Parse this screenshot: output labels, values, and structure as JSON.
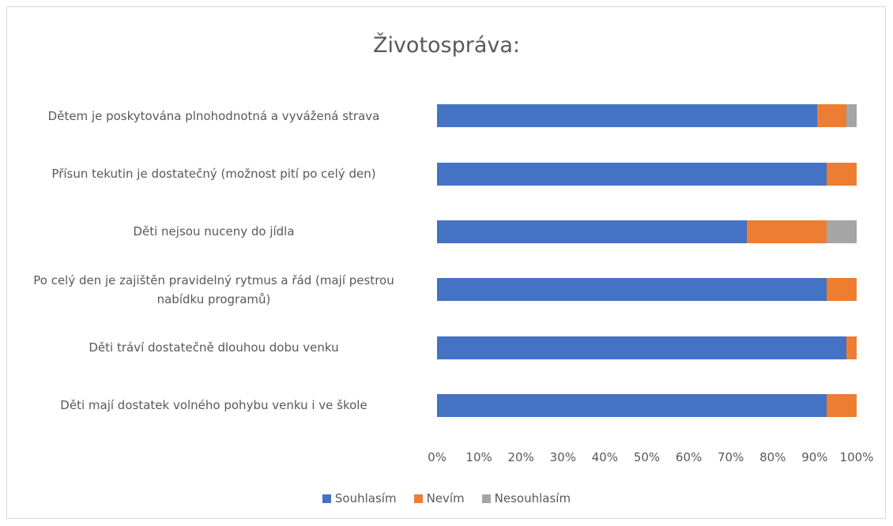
{
  "chart_data": {
    "type": "stacked_bar_horizontal",
    "title": "Životospráva:",
    "categories": [
      "Dětem je poskytována plnohodnotná a vyvážená strava",
      "Přísun tekutin je dostatečný (možnost pití po celý den)",
      "Děti nejsou nuceny do jídla",
      "Po celý den je zajištěn pravidelný rytmus a řád (mají pestrou nabídku programů)",
      "Děti tráví dostatečně dlouhou dobu venku",
      "Děti mají dostatek volného pohybu venku i ve škole"
    ],
    "series": [
      {
        "name": "Souhlasím",
        "color": "#4472c4",
        "values": [
          90.5,
          92.9,
          73.8,
          92.9,
          97.6,
          92.9
        ]
      },
      {
        "name": "Nevím",
        "color": "#ed7d31",
        "values": [
          7.1,
          7.1,
          19.1,
          7.1,
          2.4,
          7.1
        ]
      },
      {
        "name": "Nesouhlasím",
        "color": "#a5a5a5",
        "values": [
          2.4,
          0,
          7.1,
          0,
          0,
          0
        ]
      }
    ],
    "xlim": [
      0,
      100
    ],
    "xticks": [
      {
        "value": 0,
        "label": "0%"
      },
      {
        "value": 10,
        "label": "10%"
      },
      {
        "value": 20,
        "label": "20%"
      },
      {
        "value": 30,
        "label": "30%"
      },
      {
        "value": 40,
        "label": "40%"
      },
      {
        "value": 50,
        "label": "50%"
      },
      {
        "value": 60,
        "label": "60%"
      },
      {
        "value": 70,
        "label": "70%"
      },
      {
        "value": 80,
        "label": "80%"
      },
      {
        "value": 90,
        "label": "90%"
      },
      {
        "value": 100,
        "label": "100%"
      }
    ],
    "grid": false,
    "legend": "bottom"
  }
}
